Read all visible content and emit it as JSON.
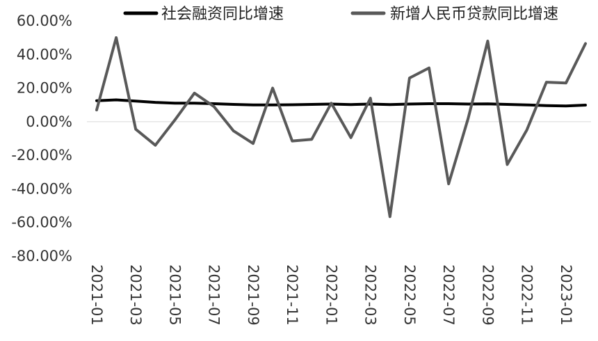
{
  "chart_data": {
    "type": "line",
    "x": [
      "2021-01",
      "2021-02",
      "2021-03",
      "2021-04",
      "2021-05",
      "2021-06",
      "2021-07",
      "2021-08",
      "2021-09",
      "2021-10",
      "2021-11",
      "2021-12",
      "2022-01",
      "2022-02",
      "2022-03",
      "2022-04",
      "2022-05",
      "2022-06",
      "2022-07",
      "2022-08",
      "2022-09",
      "2022-10",
      "2022-11",
      "2022-12",
      "2023-01",
      "2023-02"
    ],
    "x_tick_labels": [
      "2021-01",
      "2021-03",
      "2021-05",
      "2021-07",
      "2021-09",
      "2021-11",
      "2022-01",
      "2022-03",
      "2022-05",
      "2022-07",
      "2022-09",
      "2022-11",
      "2023-01"
    ],
    "ylim": [
      -80,
      60
    ],
    "y_ticks": [
      60,
      40,
      20,
      0,
      -20,
      -40,
      -60,
      -80
    ],
    "y_tick_labels": [
      "60.00%",
      "40.00%",
      "20.00%",
      "0.00%",
      "-20.00%",
      "-40.00%",
      "-60.00%",
      "-80.00%"
    ],
    "series": [
      {
        "name": "社会融资同比增速",
        "color": "#000000",
        "values": [
          12.5,
          13.0,
          12.3,
          11.5,
          11.0,
          11.0,
          10.7,
          10.3,
          10.0,
          10.0,
          10.1,
          10.3,
          10.5,
          10.2,
          10.5,
          10.2,
          10.5,
          10.7,
          10.7,
          10.5,
          10.6,
          10.3,
          10.0,
          9.6,
          9.4,
          9.9
        ]
      },
      {
        "name": "新增人民币贷款同比增速",
        "color": "#595959",
        "values": [
          7,
          50,
          -4.5,
          -14,
          1,
          17,
          9,
          -5.5,
          -13,
          20,
          -11.5,
          -10.5,
          11,
          -9.5,
          14,
          -56.5,
          26,
          32,
          -37,
          2,
          48,
          -25.5,
          -5,
          23.5,
          23,
          46.5
        ]
      }
    ],
    "legend_position": "top"
  }
}
